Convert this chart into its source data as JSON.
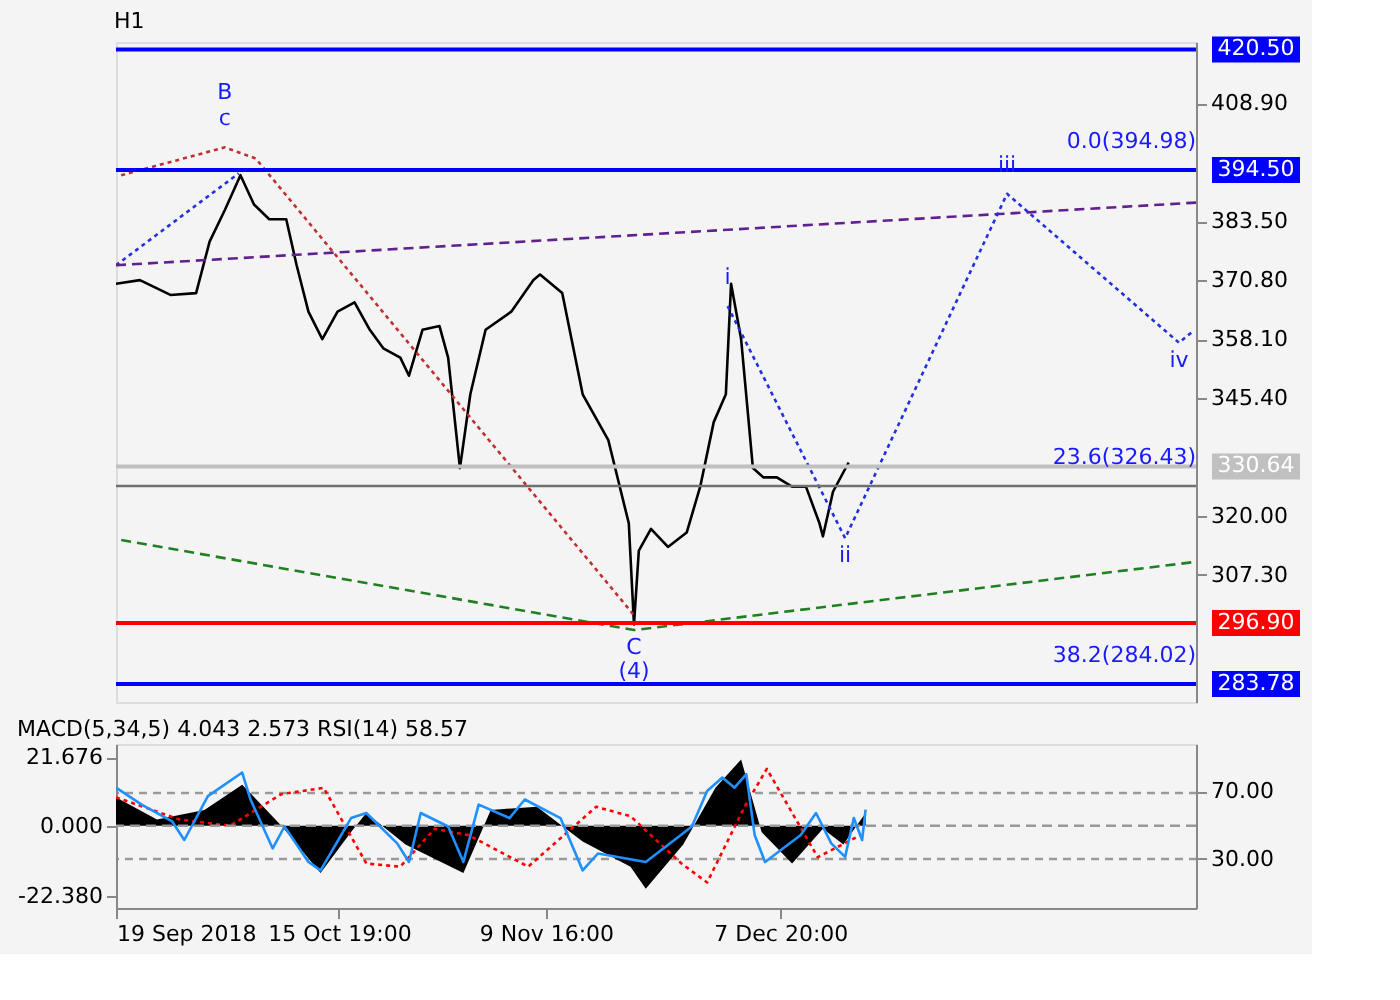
{
  "chart_data": [
    {
      "type": "line",
      "title": "H1",
      "xlim": [
        "2018-09-19T00:00",
        "2019-01-26T19:00"
      ],
      "ylim": [
        279.9,
        422.1
      ],
      "yticks": [
        {
          "value": 307.3,
          "label": "307.30"
        },
        {
          "value": 320,
          "label": "320.00"
        },
        {
          "value": 345.4,
          "label": "345.40"
        },
        {
          "value": 358.1,
          "label": "358.10"
        },
        {
          "value": 370.8,
          "label": "370.80"
        },
        {
          "value": 383.5,
          "label": "383.50"
        },
        {
          "value": 408.9,
          "label": "408.90"
        }
      ],
      "tick_labels": "y",
      "series": [
        {
          "color": "#000000",
          "x": [
            "2018-09-19T00:00",
            "2018-09-21T21:00",
            "2018-09-25T13:00",
            "2018-09-28T15:00",
            "2018-09-30T06:00",
            "2018-10-02T02:00",
            "2018-10-03T23:00",
            "2018-10-05T14:00",
            "2018-10-07T10:00",
            "2018-10-09T11:00",
            "2018-10-10T17:00",
            "2018-10-12T03:00",
            "2018-10-13T19:00",
            "2018-10-15T15:00",
            "2018-10-17T16:00",
            "2018-10-19T12:00",
            "2018-10-21T03:00",
            "2018-10-23T04:00",
            "2018-10-24T05:00",
            "2018-10-25T20:00",
            "2018-10-27T21:00",
            "2018-10-28T22:00",
            "2018-10-30T08:00",
            "2018-10-31T14:00",
            "2018-11-02T10:00",
            "2018-11-05T12:00",
            "2018-11-08T04:00",
            "2018-11-08T23:00",
            "2018-11-11T15:00",
            "2018-11-14T02:00",
            "2018-11-17T04:00",
            "2018-11-19T15:00",
            "2018-11-20T06:00",
            "2018-11-20T20:00",
            "2018-11-22T07:00",
            "2018-11-24T08:00",
            "2018-11-26T14:00",
            "2018-11-28T05:00",
            "2018-11-29T20:00",
            "2018-12-01T07:00",
            "2018-12-01T22:00",
            "2018-12-03T03:00",
            "2018-12-04T13:00",
            "2018-12-05T19:00",
            "2018-12-07T10:00",
            "2018-12-09T06:00",
            "2018-12-10T22:00",
            "2018-12-12T13:00",
            "2018-12-12T23:00",
            "2018-12-14T04:00",
            "2018-12-16T01:00"
          ],
          "values": [
            370.0,
            370.8,
            367.6,
            368.0,
            379.1,
            385.9,
            393.4,
            387.1,
            383.9,
            383.9,
            374.0,
            364.0,
            358.1,
            364.0,
            366.0,
            360.1,
            356.1,
            354.1,
            350.2,
            360.1,
            360.9,
            354.1,
            330.3,
            346.2,
            360.1,
            364.0,
            370.8,
            372.0,
            368.0,
            346.2,
            336.3,
            318.4,
            296.6,
            312.5,
            317.2,
            313.3,
            316.4,
            326.3,
            340.2,
            346.2,
            370.0,
            358.1,
            330.3,
            328.3,
            328.3,
            326.3,
            326.3,
            318.4,
            315.6,
            325.2,
            331.5
          ]
        },
        {
          "color": "#c03030",
          "line_style": "dotted",
          "x": [
            "2018-09-19T15:00",
            "2018-10-02T02:00",
            "2018-10-05T19:00",
            "2018-11-20T06:00"
          ],
          "values": [
            393.4,
            399.4,
            397.0,
            298.6
          ]
        },
        {
          "color": "#2030e0",
          "line_style": "dotted",
          "x": [
            "2018-09-19T00:00",
            "2018-10-03T18:00"
          ],
          "values": [
            374.0,
            393.8
          ]
        },
        {
          "color": "#602090",
          "line_style": "dashed",
          "x": [
            "2018-09-19T00:00",
            "2019-01-26T19:00"
          ],
          "values": [
            374.0,
            387.5
          ]
        },
        {
          "color": "#208020",
          "line_style": "dashed",
          "x": [
            "2018-09-19T15:00",
            "2018-11-20T06:00",
            "2019-01-26T19:00"
          ],
          "values": [
            314.8,
            295.4,
            310.1
          ]
        },
        {
          "color": "#2030e0",
          "line_style": "dotted",
          "x": [
            "2018-12-01T12:00",
            "2018-12-15T15:00",
            "2019-01-04T02:00",
            "2019-01-24T18:00",
            "2019-01-26T09:00"
          ],
          "values": [
            365.2,
            315.2,
            389.4,
            357.3,
            359.7
          ]
        }
      ],
      "ref_lines": [
        {
          "axis": "y",
          "value": 420.5,
          "label": "420.50",
          "color": "#0000ff"
        },
        {
          "axis": "y",
          "value": 394.5,
          "label": "394.50",
          "color": "#0000ff"
        },
        {
          "axis": "y",
          "value": 330.64,
          "label": "330.64",
          "color": "#c0c0c0"
        },
        {
          "axis": "y",
          "value": 326.43,
          "color": "#707070"
        },
        {
          "axis": "y",
          "value": 296.9,
          "label": "296.90",
          "color": "#ff0000"
        },
        {
          "axis": "y",
          "value": 283.78,
          "label": "283.78",
          "color": "#0000ff"
        }
      ],
      "annotations": [
        {
          "text": "B",
          "x": "2018-10-02T02:00",
          "y": 399.4
        },
        {
          "text": "c",
          "x": "2018-10-02T02:00",
          "y": 399.4
        },
        {
          "text": "i",
          "x": "2018-12-01T12:00",
          "y": 365.2
        },
        {
          "text": "ii",
          "x": "2018-12-15T15:00",
          "y": 315.2
        },
        {
          "text": "iii",
          "x": "2019-01-04T02:00",
          "y": 389.4
        },
        {
          "text": "iv",
          "x": "2019-01-24T18:00",
          "y": 357.3
        },
        {
          "text": "C",
          "x": "2018-11-20T06:00",
          "y": 295.4
        },
        {
          "text": "(4)",
          "x": "2018-11-20T06:00",
          "y": 295.4
        },
        {
          "text": "0.0(394.98)",
          "x": "2019-01-26T19:00",
          "y": 394.5
        },
        {
          "text": "23.6(326.43)",
          "x": "2019-01-26T19:00",
          "y": 326.43
        },
        {
          "text": "38.2(284.02)",
          "x": "2019-01-26T19:00",
          "y": 283.78
        }
      ]
    },
    {
      "type": "area",
      "title": "MACD(5,34,5) 4.043 2.573 RSI(14) 58.57",
      "xlim": [
        "2018-09-19T00:00",
        "2019-01-26T19:00"
      ],
      "xticks": [
        {
          "value": "2018-09-19T00:00",
          "label": "19 Sep 2018"
        },
        {
          "value": "2018-10-15T19:00",
          "label": "15 Oct 19:00"
        },
        {
          "value": "2018-11-09T16:00",
          "label": "9 Nov 16:00"
        },
        {
          "value": "2018-12-07T20:00",
          "label": "7 Dec 20:00"
        }
      ],
      "ylim": [
        -26.1,
        25.9
      ],
      "yticks": [
        {
          "value": 21.676,
          "label": "21.676"
        },
        {
          "value": 0,
          "label": "0.000"
        },
        {
          "value": -22.38,
          "label": "-22.380"
        }
      ],
      "y2lim": [
        0.7,
        97.9
      ],
      "grid": "y2",
      "y2ticks": [
        {
          "value": 70,
          "label": "70.00"
        },
        {
          "value": 30,
          "label": "30.00"
        }
      ],
      "series": [
        {
          "color": "#000000",
          "x": [
            "2018-09-19T00:00",
            "2018-09-23T22:00",
            "2018-09-29T15:00",
            "2018-10-04T04:00",
            "2018-10-08T21:00",
            "2018-10-13T14:00",
            "2018-10-17T06:00",
            "2018-10-19T02:00",
            "2018-10-23T19:00",
            "2018-10-30T18:00",
            "2018-11-03T01:00",
            "2018-11-08T14:00",
            "2018-11-14T02:00",
            "2018-11-19T20:00",
            "2018-11-21T16:00",
            "2018-11-26T04:00",
            "2018-11-30T01:00",
            "2018-12-03T03:00",
            "2018-12-05T14:00",
            "2018-12-09T06:00",
            "2018-12-12T23:00",
            "2018-12-15T10:00",
            "2018-12-18T02:00"
          ],
          "values": [
            9,
            2,
            5,
            13,
            0,
            -15,
            -2,
            4,
            -6,
            -15,
            5,
            6,
            -5,
            -13,
            -20,
            -6,
            12,
            21,
            -2,
            -12,
            -1,
            -6,
            4
          ]
        },
        {
          "type": "line",
          "color": "#ff0000",
          "line_style": "dotted",
          "x": [
            "2018-09-19T00:00",
            "2018-09-26T14:00",
            "2018-10-02T17:00",
            "2018-10-08T21:00",
            "2018-10-13T23:00",
            "2018-10-19T02:00",
            "2018-10-23T04:00",
            "2018-10-27T07:00",
            "2018-10-31T09:00",
            "2018-11-07T13:00",
            "2018-11-15T17:00",
            "2018-11-19T20:00",
            "2018-11-25T23:00",
            "2018-11-29T01:00",
            "2018-12-03T13:00",
            "2018-12-06T05:00",
            "2018-12-12T08:00",
            "2018-12-17T11:00"
          ],
          "values": [
            9,
            2,
            0,
            10,
            12,
            -12,
            -13,
            -1,
            -3,
            -13,
            6,
            3,
            -12,
            -18,
            6,
            18,
            -10,
            -3
          ]
        },
        {
          "type": "line",
          "axis": "y2",
          "color": "#1e90ff",
          "x": [
            "2018-09-19T00:00",
            "2018-09-22T02:00",
            "2018-09-25T18:00",
            "2018-09-27T05:00",
            "2018-09-30T01:00",
            "2018-10-04T04:00",
            "2018-10-05T04:00",
            "2018-10-07T20:00",
            "2018-10-09T06:00",
            "2018-10-12T03:00",
            "2018-10-13T14:00",
            "2018-10-17T06:00",
            "2018-10-19T02:00",
            "2018-10-22T19:00",
            "2018-10-24T05:00",
            "2018-10-25T15:00",
            "2018-10-28T22:00",
            "2018-10-30T18:00",
            "2018-11-01T14:00",
            "2018-11-05T07:00",
            "2018-11-07T03:00",
            "2018-11-11T10:00",
            "2018-11-14T02:00",
            "2018-11-15T22:00",
            "2018-11-21T16:00",
            "2018-11-27T05:00",
            "2018-11-29T01:00",
            "2018-11-30T21:00",
            "2018-12-02T08:00",
            "2018-12-03T18:00",
            "2018-12-04T18:00",
            "2018-12-06T00:00",
            "2018-12-10T07:00",
            "2018-12-12T03:00",
            "2018-12-13T23:00",
            "2018-12-15T15:00",
            "2018-12-16T16:00",
            "2018-12-17T16:00",
            "2018-12-18T02:00"
          ],
          "values": [
            72,
            62,
            52,
            41,
            67,
            81,
            65,
            36,
            49,
            28,
            23,
            54,
            57,
            39,
            28,
            57,
            49,
            28,
            62,
            54,
            65,
            54,
            23,
            33,
            28,
            49,
            70,
            78,
            72,
            80,
            44,
            28,
            44,
            57,
            39,
            31,
            54,
            41,
            59
          ]
        }
      ],
      "ref_lines": [
        {
          "axis": "y",
          "value": 0,
          "color": "#999999",
          "line_style": "dashed"
        }
      ]
    }
  ]
}
